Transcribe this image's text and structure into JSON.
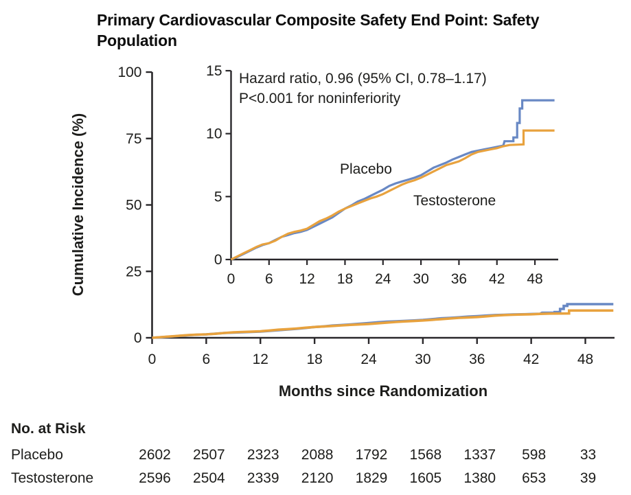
{
  "title": {
    "line1": "Primary Cardiovascular Composite Safety End Point: Safety",
    "line2": "Population"
  },
  "colors": {
    "placebo_blue": "#6888c4",
    "testosterone_orange": "#e8a23e",
    "axis": "#29272a",
    "text": "#1d1d1b"
  },
  "chart_data": {
    "type": "line",
    "title": "Primary Cardiovascular Composite Safety End Point: Safety Population",
    "xlabel": "Months since Randomization",
    "ylabel": "Cumulative Incidence (%)",
    "x_ticks": [
      0,
      6,
      12,
      18,
      24,
      30,
      36,
      42,
      48
    ],
    "main_axis": {
      "xlim": [
        0,
        51.4
      ],
      "ylim": [
        0,
        100
      ],
      "y_ticks": [
        0,
        25,
        50,
        75,
        100
      ],
      "grid": false
    },
    "inset_axis": {
      "xlim": [
        0,
        51.7
      ],
      "ylim": [
        0,
        15
      ],
      "y_ticks": [
        0,
        5,
        10,
        15
      ],
      "grid": false
    },
    "annotations": {
      "hazard_ratio": "Hazard ratio, 0.96 (95% CI, 0.78–1.17)",
      "p_value": "P<0.001 for noninferiority",
      "placebo_label": "Placebo",
      "testosterone_label": "Testosterone"
    },
    "series": [
      {
        "name": "Placebo",
        "color": "#6888c4",
        "points": [
          [
            0,
            0
          ],
          [
            1,
            0.2
          ],
          [
            2,
            0.45
          ],
          [
            3,
            0.7
          ],
          [
            4,
            0.95
          ],
          [
            5,
            1.15
          ],
          [
            6,
            1.3
          ],
          [
            7,
            1.55
          ],
          [
            8,
            1.8
          ],
          [
            9,
            1.95
          ],
          [
            10,
            2.1
          ],
          [
            11,
            2.2
          ],
          [
            12,
            2.35
          ],
          [
            13,
            2.6
          ],
          [
            14,
            2.85
          ],
          [
            15,
            3.1
          ],
          [
            16,
            3.35
          ],
          [
            17,
            3.7
          ],
          [
            18,
            4.05
          ],
          [
            19,
            4.3
          ],
          [
            20,
            4.6
          ],
          [
            21,
            4.8
          ],
          [
            22,
            5.05
          ],
          [
            23,
            5.3
          ],
          [
            24,
            5.55
          ],
          [
            25,
            5.85
          ],
          [
            26,
            6.05
          ],
          [
            27,
            6.2
          ],
          [
            28,
            6.35
          ],
          [
            29,
            6.5
          ],
          [
            30,
            6.7
          ],
          [
            31,
            7.0
          ],
          [
            32,
            7.3
          ],
          [
            33,
            7.5
          ],
          [
            34,
            7.7
          ],
          [
            35,
            7.95
          ],
          [
            36,
            8.15
          ],
          [
            37,
            8.35
          ],
          [
            38,
            8.55
          ],
          [
            39,
            8.65
          ],
          [
            40,
            8.75
          ],
          [
            41,
            8.85
          ],
          [
            42,
            8.95
          ],
          [
            43,
            9.05
          ],
          [
            43.2,
            9.4
          ],
          [
            44.6,
            9.4
          ],
          [
            44.6,
            9.7
          ],
          [
            45.2,
            9.7
          ],
          [
            45.2,
            10.85
          ],
          [
            45.6,
            10.85
          ],
          [
            45.6,
            12.0
          ],
          [
            46.0,
            12.0
          ],
          [
            46.0,
            12.65
          ],
          [
            51.1,
            12.65
          ]
        ]
      },
      {
        "name": "Testosterone",
        "color": "#e8a23e",
        "points": [
          [
            0,
            0
          ],
          [
            1,
            0.25
          ],
          [
            2,
            0.5
          ],
          [
            3,
            0.75
          ],
          [
            4,
            1.0
          ],
          [
            5,
            1.2
          ],
          [
            6,
            1.3
          ],
          [
            7,
            1.5
          ],
          [
            8,
            1.8
          ],
          [
            9,
            2.05
          ],
          [
            10,
            2.2
          ],
          [
            11,
            2.3
          ],
          [
            12,
            2.45
          ],
          [
            13,
            2.75
          ],
          [
            14,
            3.05
          ],
          [
            15,
            3.25
          ],
          [
            16,
            3.5
          ],
          [
            17,
            3.8
          ],
          [
            18,
            4.05
          ],
          [
            19,
            4.25
          ],
          [
            20,
            4.45
          ],
          [
            21,
            4.65
          ],
          [
            22,
            4.85
          ],
          [
            23,
            5.0
          ],
          [
            24,
            5.2
          ],
          [
            25,
            5.45
          ],
          [
            26,
            5.7
          ],
          [
            27,
            5.95
          ],
          [
            28,
            6.15
          ],
          [
            29,
            6.3
          ],
          [
            30,
            6.5
          ],
          [
            31,
            6.75
          ],
          [
            32,
            7.0
          ],
          [
            33,
            7.25
          ],
          [
            34,
            7.5
          ],
          [
            35,
            7.65
          ],
          [
            36,
            7.8
          ],
          [
            37,
            8.05
          ],
          [
            38,
            8.35
          ],
          [
            39,
            8.55
          ],
          [
            40,
            8.65
          ],
          [
            41,
            8.75
          ],
          [
            42,
            8.85
          ],
          [
            43,
            9.0
          ],
          [
            44,
            9.1
          ],
          [
            46.2,
            9.15
          ],
          [
            46.2,
            10.25
          ],
          [
            51.1,
            10.25
          ]
        ]
      }
    ]
  },
  "at_risk": {
    "heading": "No. at Risk",
    "timepoints": [
      0,
      6,
      12,
      18,
      24,
      30,
      36,
      42,
      48
    ],
    "rows": [
      {
        "label": "Placebo",
        "values": [
          2602,
          2507,
          2323,
          2088,
          1792,
          1568,
          1337,
          598,
          33
        ]
      },
      {
        "label": "Testosterone",
        "values": [
          2596,
          2504,
          2339,
          2120,
          1829,
          1605,
          1380,
          653,
          39
        ]
      }
    ]
  }
}
